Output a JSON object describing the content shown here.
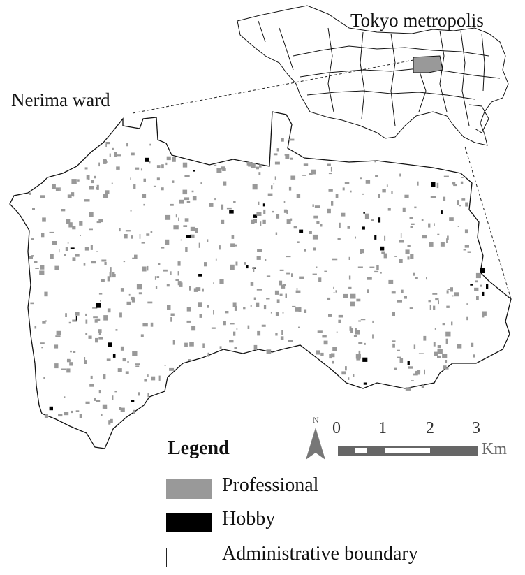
{
  "titles": {
    "ward": "Nerima ward",
    "metropolis": "Tokyo metropolis"
  },
  "legend": {
    "title": "Legend",
    "items": [
      {
        "label": "Professional",
        "color": "#999999"
      },
      {
        "label": "Hobby",
        "color": "#000000"
      },
      {
        "label": "Administrative boundary",
        "color": "#ffffff"
      }
    ]
  },
  "scale_bar": {
    "ticks": [
      "0",
      "1",
      "2",
      "3"
    ],
    "unit": "Km"
  },
  "north_arrow": {
    "label": "N"
  },
  "colors": {
    "professional": "#999999",
    "hobby": "#000000",
    "highlight": "#999999",
    "boundary": "#111111"
  }
}
